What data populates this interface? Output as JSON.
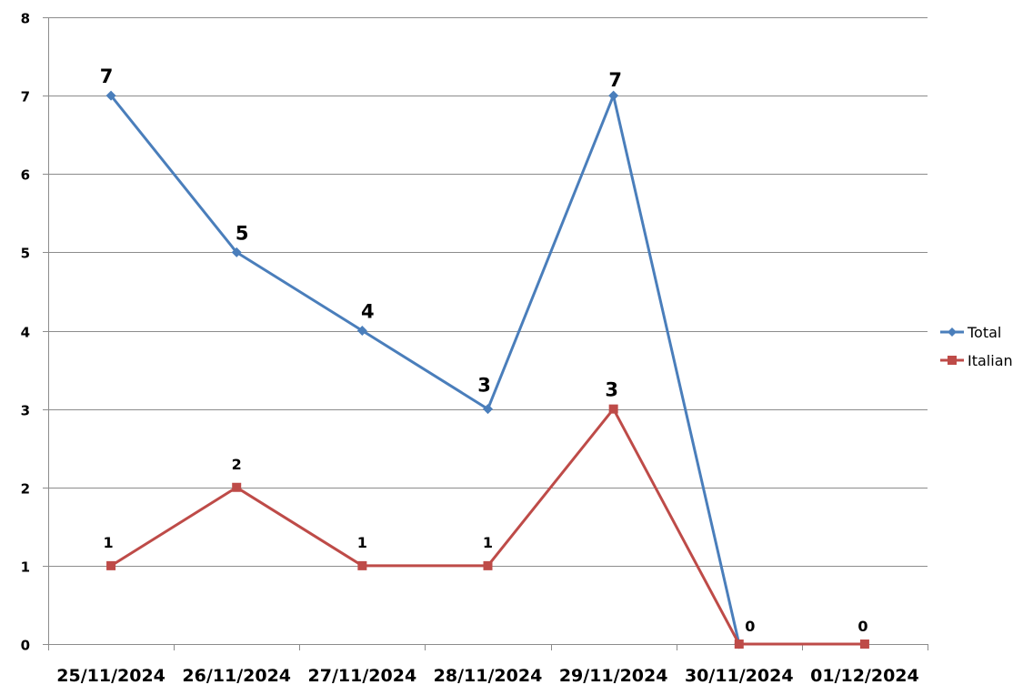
{
  "chart_data": {
    "type": "line",
    "title": "",
    "xlabel": "",
    "ylabel": "",
    "categories": [
      "25/11/2024",
      "26/11/2024",
      "27/11/2024",
      "28/11/2024",
      "29/11/2024",
      "30/11/2024",
      "01/12/2024"
    ],
    "yticks": [
      "0",
      "1",
      "2",
      "3",
      "4",
      "5",
      "6",
      "7",
      "8"
    ],
    "ylim": [
      0,
      8
    ],
    "grid": "horizontal",
    "legend": "right",
    "series": [
      {
        "name": "Total",
        "color": "#4a7ebb",
        "marker": "diamond",
        "values": [
          7,
          5,
          4,
          3,
          7,
          0,
          null
        ],
        "data_labels": [
          "7",
          "5",
          "4",
          "3",
          "7",
          "",
          ""
        ]
      },
      {
        "name": "Italian",
        "color": "#be4b48",
        "marker": "square",
        "values": [
          1,
          2,
          1,
          1,
          3,
          0,
          0
        ],
        "data_labels": [
          "1",
          "2",
          "1",
          "1",
          "3",
          "0",
          "0"
        ]
      }
    ]
  }
}
